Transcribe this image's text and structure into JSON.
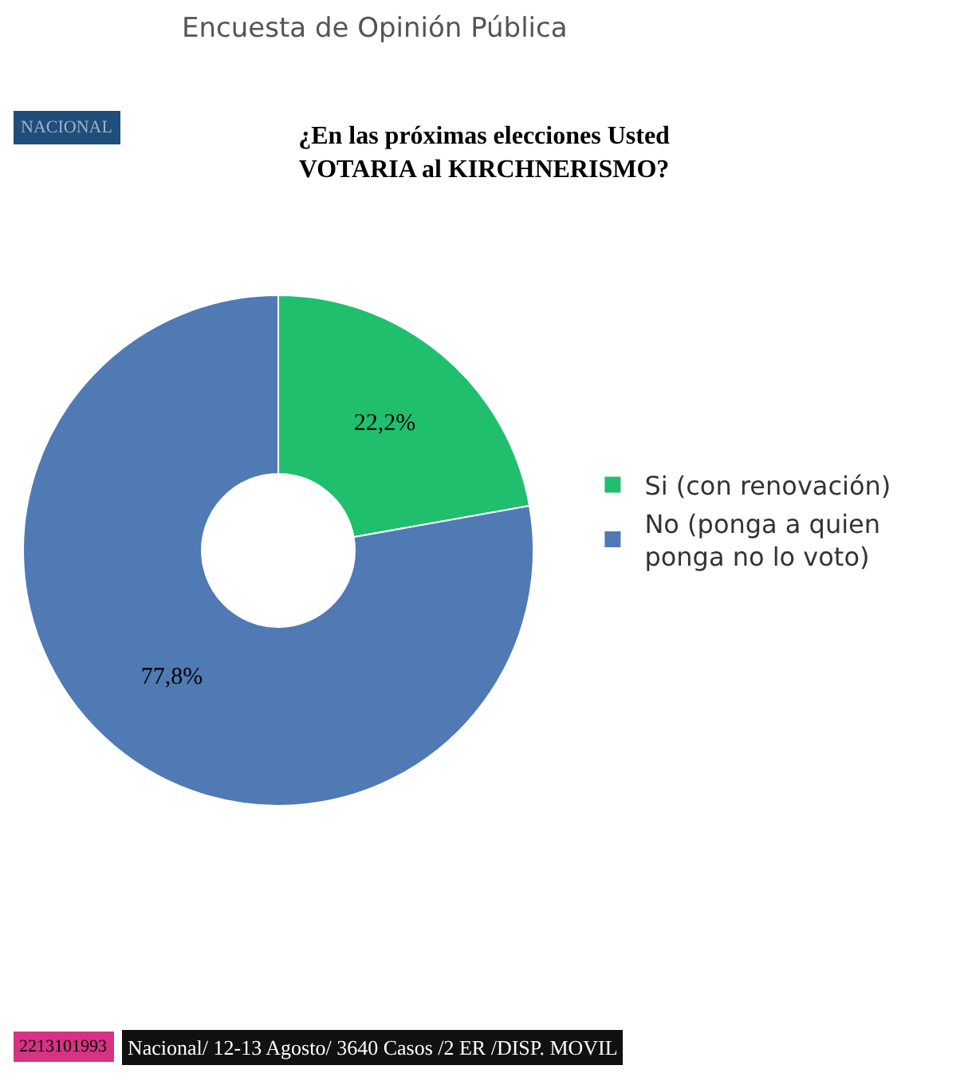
{
  "chart_data": {
    "type": "donut",
    "title": "¿En las próximas elecciones Usted\nVOTARIA al KIRCHNERISMO?",
    "categories": [
      "Si (con renovación)",
      "No (ponga a quien ponga no lo voto)"
    ],
    "values": [
      22.2,
      77.8
    ],
    "colors": [
      "#1fbf6e",
      "#4f7ab4"
    ],
    "value_labels": [
      "22,2%",
      "77,8%"
    ],
    "legend": "right",
    "annotations": [
      "Encuesta de Opinión Pública",
      "NACIONAL",
      "2213101993",
      "Nacional/ 12-13 Agosto/ 3640 Casos /2 ER /DISP. MOVIL"
    ]
  }
}
